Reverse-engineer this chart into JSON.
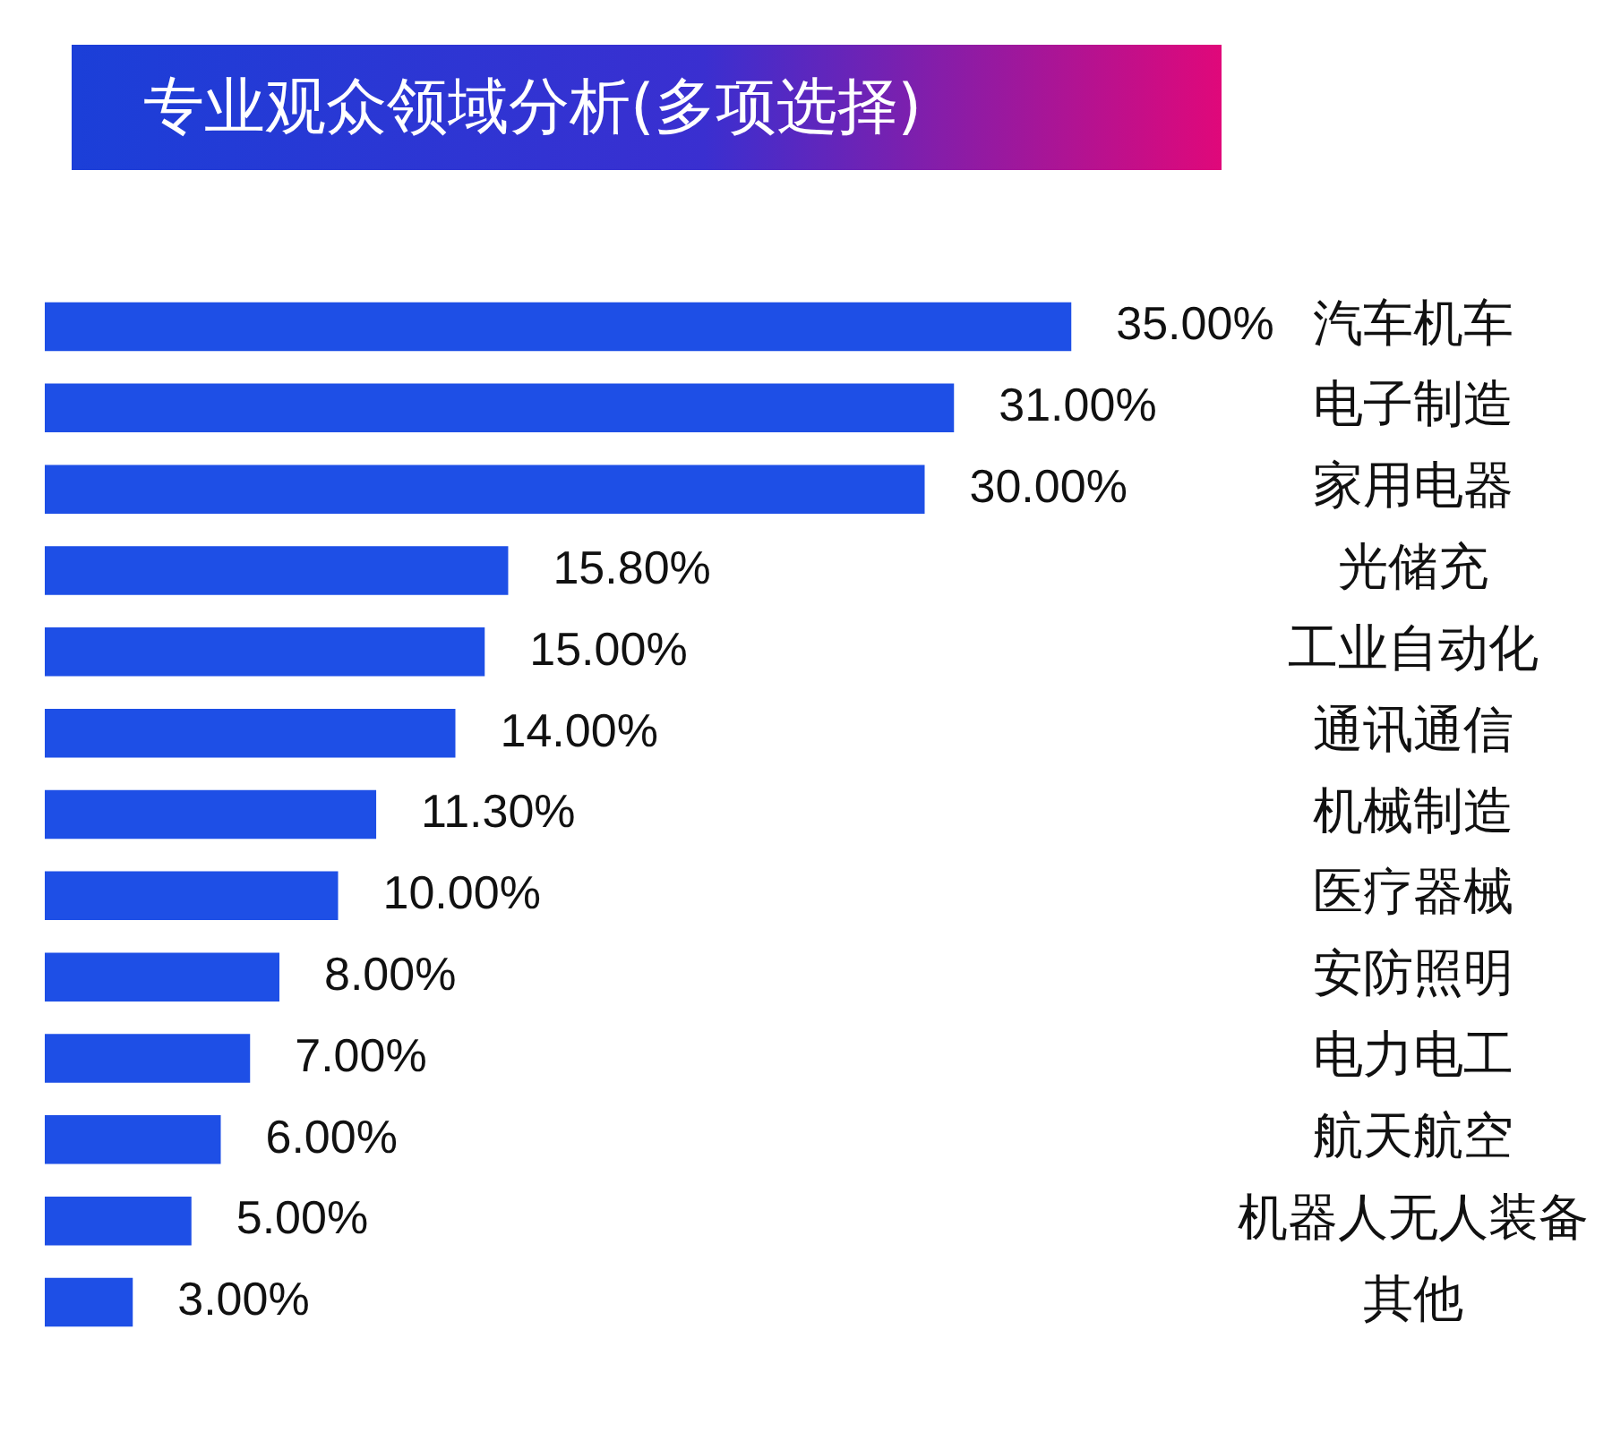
{
  "chart_data": {
    "type": "bar",
    "orientation": "horizontal",
    "title": "专业观众领域分析(多项选择)",
    "categories": [
      "汽车机车",
      "电子制造",
      "家用电器",
      "光储充",
      "工业自动化",
      "通讯通信",
      "机械制造",
      "医疗器械",
      "安防照明",
      "电力电工",
      "航天航空",
      "机器人无人装备",
      "其他"
    ],
    "values": [
      35,
      31,
      30,
      15.8,
      15,
      14,
      11.3,
      10,
      8,
      7,
      6,
      5,
      3
    ],
    "value_labels": [
      "35.00%",
      "31.00%",
      "30.00%",
      "15.80%",
      "15.00%",
      "14.00%",
      "11.30%",
      "10.00%",
      "8.00%",
      "7.00%",
      "6.00%",
      "5.00%",
      "3.00%"
    ],
    "color": "#1e4fe6",
    "grid": false,
    "legend": false,
    "tick_labels": "y"
  }
}
